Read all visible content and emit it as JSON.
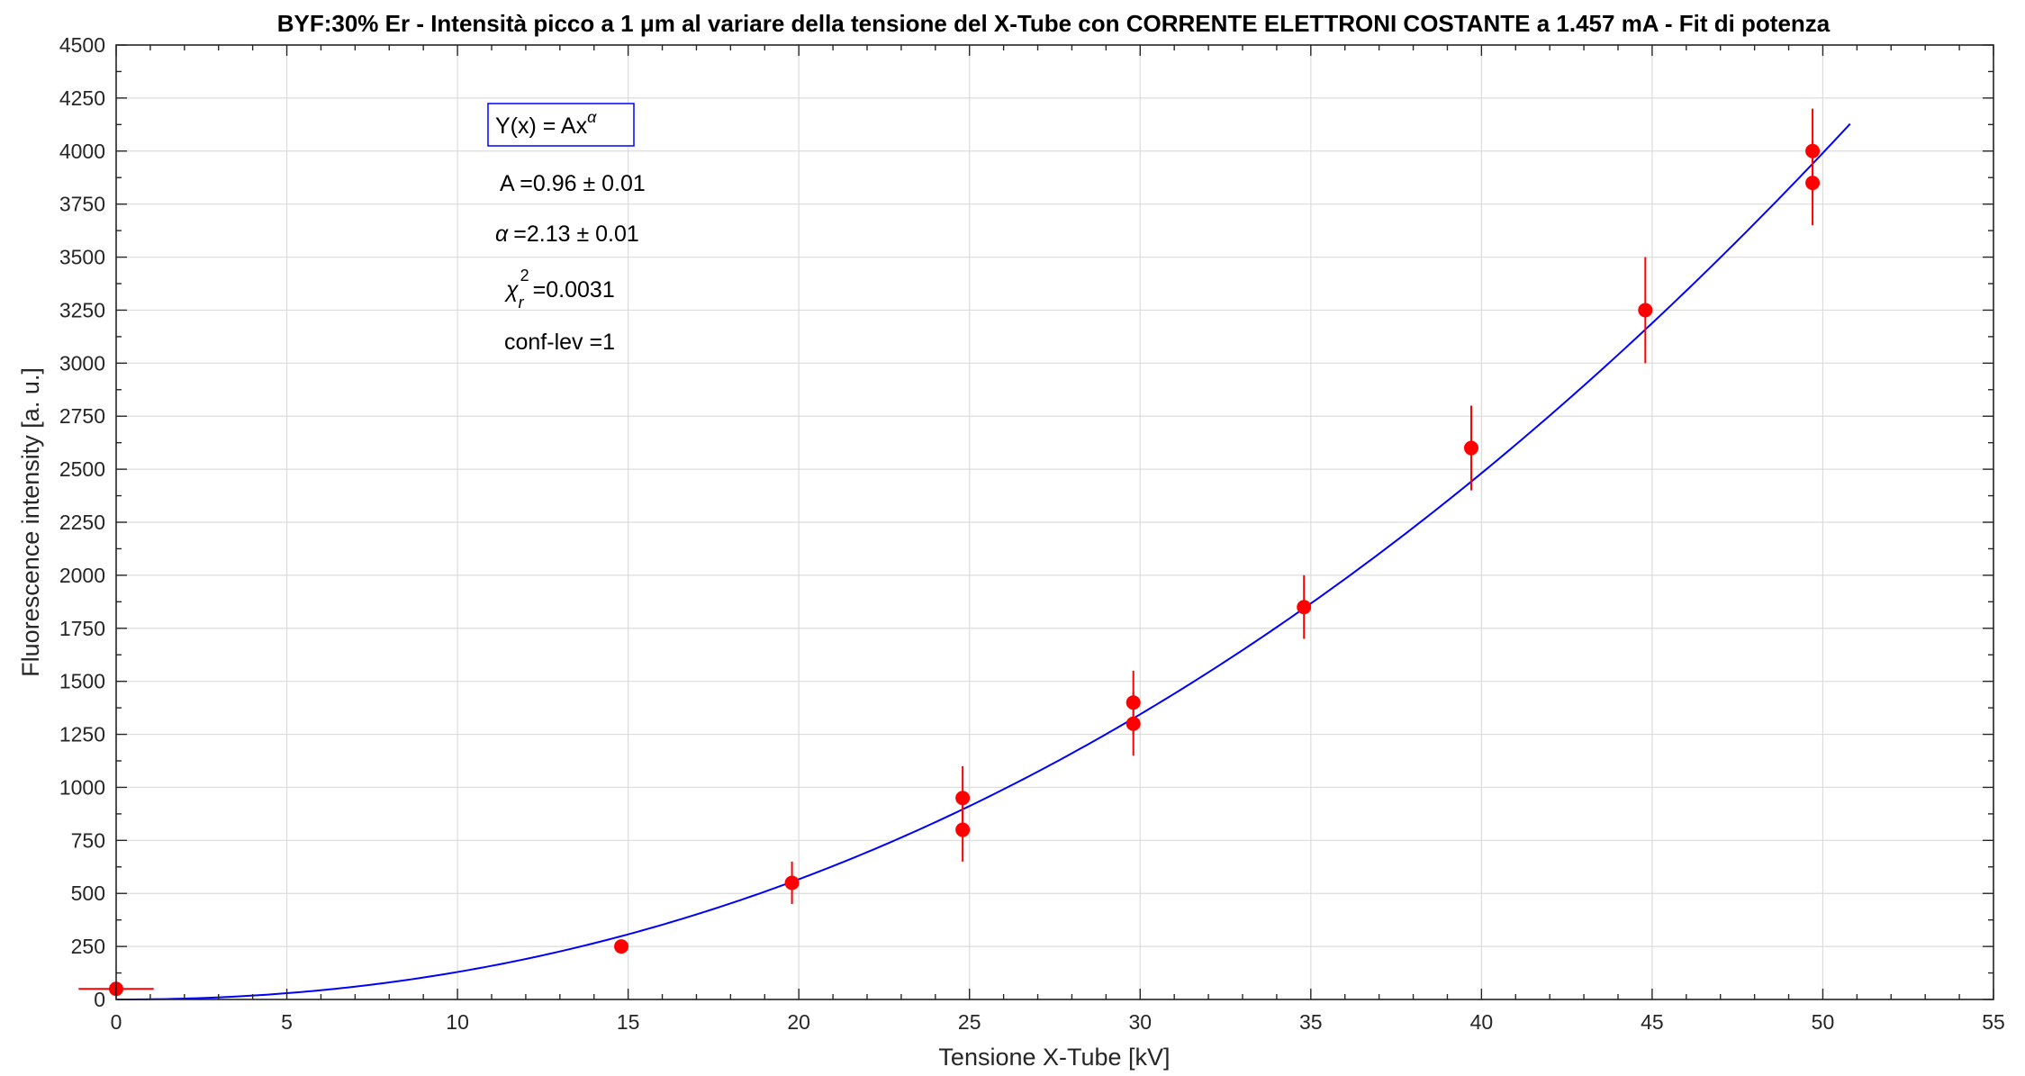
{
  "chart_data": {
    "type": "scatter",
    "title": "BYF:30% Er - Intensità picco a 1 μm al variare della tensione del X-Tube con CORRENTE ELETTRONI COSTANTE a 1.457 mA - Fit di potenza",
    "xlabel": "Tensione X-Tube [kV]",
    "ylabel": "Fluorescence intensity [a. u.]",
    "xlim": [
      0,
      55
    ],
    "ylim": [
      0,
      4500
    ],
    "xticks": [
      "0",
      "5",
      "10",
      "15",
      "20",
      "25",
      "30",
      "35",
      "40",
      "45",
      "50",
      "55"
    ],
    "yticks": [
      "0",
      "250",
      "500",
      "750",
      "1000",
      "1250",
      "1500",
      "1750",
      "2000",
      "2250",
      "2500",
      "2750",
      "3000",
      "3250",
      "3500",
      "3750",
      "4000",
      "4250",
      "4500"
    ],
    "grid": true,
    "points": [
      {
        "x": 0,
        "y": 50,
        "yerr": 10,
        "xerr": 1.1
      },
      {
        "x": 14.8,
        "y": 250,
        "yerr": 20,
        "xerr": 0
      },
      {
        "x": 19.8,
        "y": 550,
        "yerr": 100,
        "xerr": 0
      },
      {
        "x": 24.8,
        "y": 950,
        "yerr": 150,
        "xerr": 0
      },
      {
        "x": 24.8,
        "y": 800,
        "yerr": 150,
        "xerr": 0
      },
      {
        "x": 29.8,
        "y": 1400,
        "yerr": 150,
        "xerr": 0
      },
      {
        "x": 29.8,
        "y": 1300,
        "yerr": 150,
        "xerr": 0
      },
      {
        "x": 34.8,
        "y": 1850,
        "yerr": 150,
        "xerr": 0
      },
      {
        "x": 39.7,
        "y": 2600,
        "yerr": 200,
        "xerr": 0
      },
      {
        "x": 44.8,
        "y": 3250,
        "yerr": 250,
        "xerr": 0
      },
      {
        "x": 49.7,
        "y": 4000,
        "yerr": 200,
        "xerr": 0
      },
      {
        "x": 49.7,
        "y": 3850,
        "yerr": 200,
        "xerr": 0
      }
    ],
    "fit": {
      "model": "Y(x) = Ax^α",
      "A": 0.96,
      "alpha": 2.13,
      "x_from": 0,
      "x_to": 50.8
    },
    "colors": {
      "points": "#ff0000",
      "fit": "#0000ff"
    }
  },
  "annotations": {
    "formula_prefix": "Y(x) = Ax",
    "formula_exp": "α",
    "A_line": "A =0.96 ± 0.01",
    "alpha_symbol": "α",
    "alpha_line": "=2.13 ± 0.01",
    "chi_symbol": "χ",
    "chi_sup": "2",
    "chi_sub": "r",
    "chi_line": "=0.0031",
    "conf_line": "conf-lev =1"
  }
}
